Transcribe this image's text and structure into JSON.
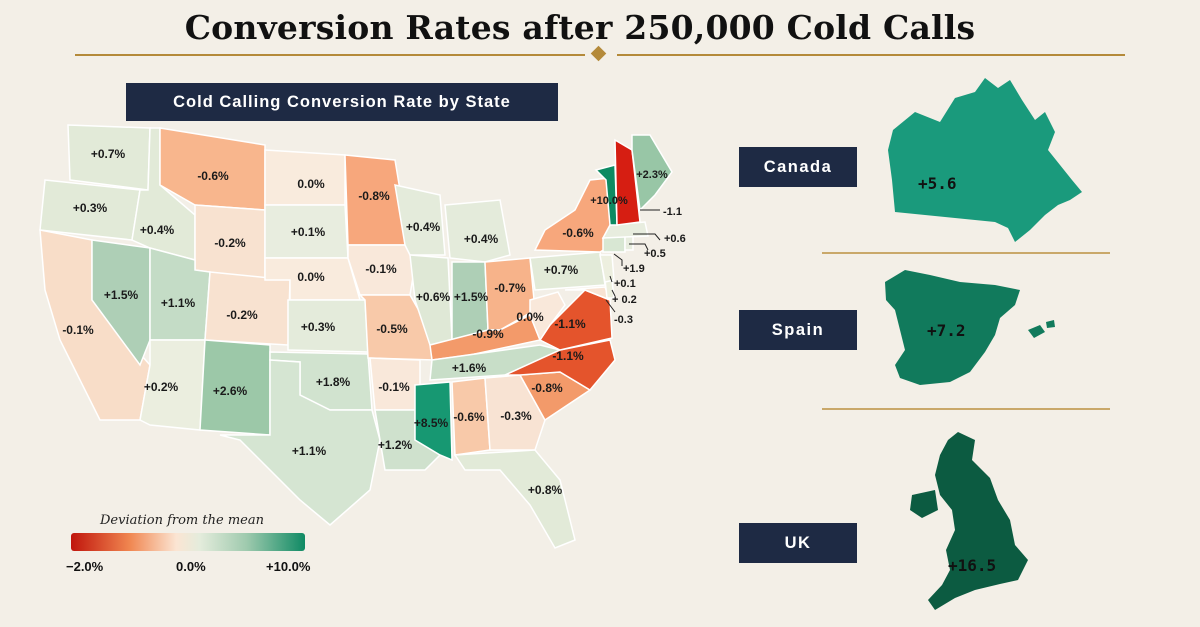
{
  "title": "Conversion Rates after 250,000 Cold Calls",
  "map_header": "Cold Calling Conversion Rate by State",
  "legend": {
    "title": "Deviation from the mean",
    "min": "−2.0%",
    "mid": "0.0%",
    "max": "+10.0%",
    "colors": [
      "#c0150c",
      "#f08650",
      "#fbe5d3",
      "#e4ecdc",
      "#9fcaae",
      "#0f8a64"
    ]
  },
  "states": [
    {
      "state": "WA",
      "label": "+0.7%"
    },
    {
      "state": "OR",
      "label": "+0.3%"
    },
    {
      "state": "CA",
      "label": "-0.1%"
    },
    {
      "state": "NV",
      "label": "+1.5%"
    },
    {
      "state": "ID",
      "label": "+0.4%"
    },
    {
      "state": "MT",
      "label": "-0.6%"
    },
    {
      "state": "WY",
      "label": "-0.2%"
    },
    {
      "state": "UT",
      "label": "+1.1%"
    },
    {
      "state": "AZ",
      "label": "+0.2%"
    },
    {
      "state": "CO",
      "label": "-0.2%"
    },
    {
      "state": "NM",
      "label": "+2.6%"
    },
    {
      "state": "ND",
      "label": "0.0%"
    },
    {
      "state": "SD",
      "label": "+0.1%"
    },
    {
      "state": "NE",
      "label": "0.0%"
    },
    {
      "state": "KS",
      "label": "+0.3%"
    },
    {
      "state": "OK",
      "label": "+1.8%"
    },
    {
      "state": "TX",
      "label": "+1.1%"
    },
    {
      "state": "MN",
      "label": "-0.8%"
    },
    {
      "state": "IA",
      "label": "-0.1%"
    },
    {
      "state": "MO",
      "label": "-0.5%"
    },
    {
      "state": "AR",
      "label": "-0.1%"
    },
    {
      "state": "LA",
      "label": "+1.2%"
    },
    {
      "state": "WI",
      "label": "+0.4%"
    },
    {
      "state": "IL",
      "label": "+0.6%"
    },
    {
      "state": "MI",
      "label": "+0.4%"
    },
    {
      "state": "IN",
      "label": "+1.5%"
    },
    {
      "state": "OH",
      "label": "-0.7%"
    },
    {
      "state": "KY",
      "label": "-0.9%"
    },
    {
      "state": "TN",
      "label": "+1.6%"
    },
    {
      "state": "MS",
      "label": "+8.5%"
    },
    {
      "state": "AL",
      "label": "-0.6%"
    },
    {
      "state": "GA",
      "label": "-0.3%"
    },
    {
      "state": "FL",
      "label": "+0.8%"
    },
    {
      "state": "SC",
      "label": "-0.8%"
    },
    {
      "state": "NC",
      "label": "-1.1%"
    },
    {
      "state": "VA",
      "label": "-1.1%"
    },
    {
      "state": "WV",
      "label": "0.0%"
    },
    {
      "state": "PA",
      "label": "+0.7%"
    },
    {
      "state": "NY",
      "label": "-0.6%"
    },
    {
      "state": "VT",
      "label": "+10.0%"
    },
    {
      "state": "NH",
      "label": "-1.1"
    },
    {
      "state": "ME",
      "label": "+2.3%"
    },
    {
      "state": "MA",
      "label": "+0.6"
    },
    {
      "state": "RI",
      "label": "+0.5"
    },
    {
      "state": "CT",
      "label": "+1.9"
    },
    {
      "state": "NJ",
      "label": "+0.1"
    },
    {
      "state": "DE",
      "label": "+ 0.2"
    },
    {
      "state": "MD",
      "label": "-0.3"
    }
  ],
  "countries": [
    {
      "name": "Canada",
      "value": "+5.6",
      "color": "#1a9a7c"
    },
    {
      "name": "Spain",
      "value": "+7.2",
      "color": "#117a5c"
    },
    {
      "name": "UK",
      "value": "+16.5",
      "color": "#0c5b41"
    }
  ]
}
